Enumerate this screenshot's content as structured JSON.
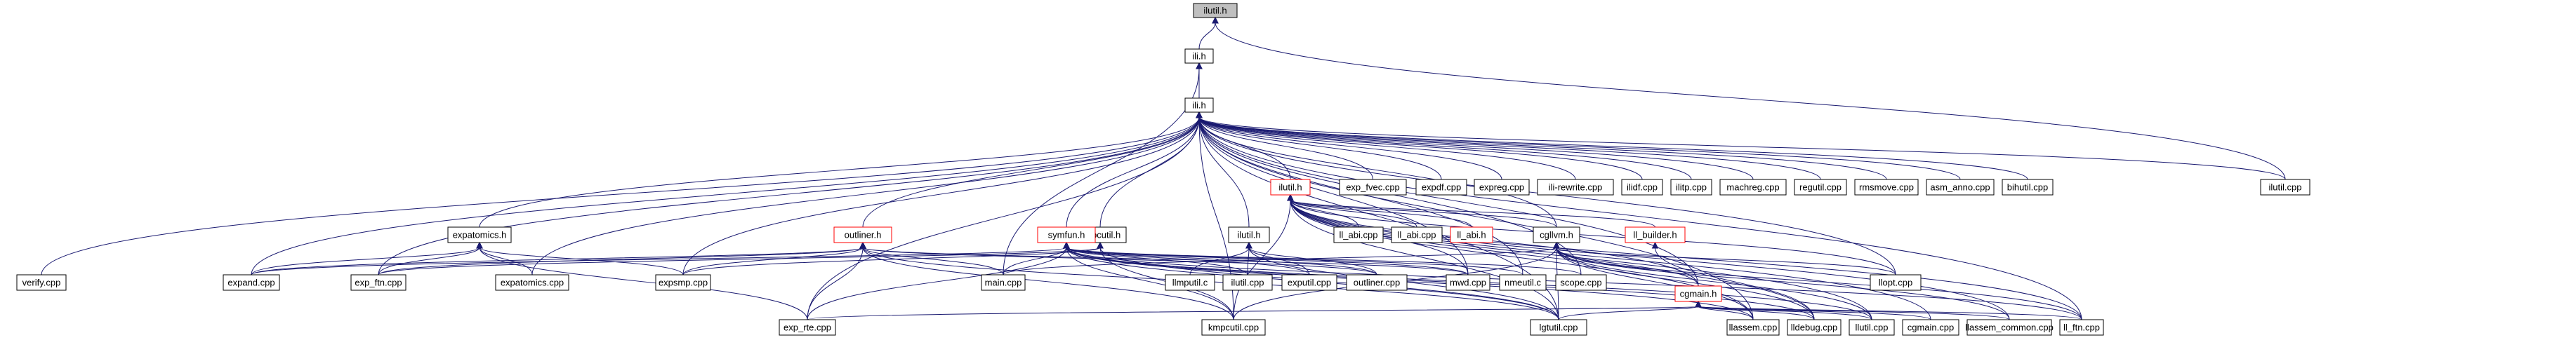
{
  "diagram": {
    "nodes": [
      {
        "id": "ilutil_h_root",
        "label": "ilutil.h",
        "style": "root"
      },
      {
        "id": "ili_h",
        "label": "ili.h"
      },
      {
        "id": "gbldefs_h",
        "label": "ili.h"
      },
      {
        "id": "ilutil_cpp_right",
        "label": "ilutil.cpp"
      },
      {
        "id": "exp_fvec",
        "label": "exp_fvec.cpp"
      },
      {
        "id": "expdf",
        "label": "expdf.cpp"
      },
      {
        "id": "expreg",
        "label": "expreg.cpp"
      },
      {
        "id": "iliwrite",
        "label": "ili-rewrite.cpp"
      },
      {
        "id": "iliutil_cpp",
        "label": "ilidf.cpp"
      },
      {
        "id": "ilitp",
        "label": "ilitp.cpp"
      },
      {
        "id": "machreg",
        "label": "machreg.cpp"
      },
      {
        "id": "regutil",
        "label": "regutil.cpp"
      },
      {
        "id": "rmsmove",
        "label": "rmsmove.cpp"
      },
      {
        "id": "asm_anno",
        "label": "asm_anno.cpp"
      },
      {
        "id": "bihutil",
        "label": "bihutil.cpp"
      },
      {
        "id": "iliutil_h_red",
        "label": "ilutil.h",
        "style": "red"
      },
      {
        "id": "ll_abi_cpp",
        "label": "ll_abi.cpp"
      },
      {
        "id": "ll_abi_cpp2",
        "label": "ll_abi.cpp"
      },
      {
        "id": "ll_abi_h",
        "label": "ll_abi.h",
        "style": "red"
      },
      {
        "id": "cgllvm_h",
        "label": "cgllvm.h"
      },
      {
        "id": "ll_builder_h",
        "label": "ll_builder.h",
        "style": "red"
      },
      {
        "id": "llopt_cpp",
        "label": "llopt.cpp"
      },
      {
        "id": "expatomics_h",
        "label": "expatomics.h"
      },
      {
        "id": "outliner_h",
        "label": "outliner.h",
        "style": "red"
      },
      {
        "id": "kmpcutil_h",
        "label": "kmpcutil.h"
      },
      {
        "id": "ilutil_h_mid",
        "label": "ilutil.h"
      },
      {
        "id": "symfun_h",
        "label": "symfun.h",
        "style": "red"
      },
      {
        "id": "verify",
        "label": "verify.cpp"
      },
      {
        "id": "expand",
        "label": "expand.cpp"
      },
      {
        "id": "exp_ftn",
        "label": "exp_ftn.cpp"
      },
      {
        "id": "expatomics_cpp",
        "label": "expatomics.cpp"
      },
      {
        "id": "expsmp",
        "label": "expsmp.cpp"
      },
      {
        "id": "main_cpp",
        "label": "main.cpp"
      },
      {
        "id": "llmputil",
        "label": "llmputil.c"
      },
      {
        "id": "ilutil_cpp_mid",
        "label": "ilutil.cpp"
      },
      {
        "id": "exputil",
        "label": "exputil.cpp"
      },
      {
        "id": "outliner_cpp",
        "label": "outliner.cpp"
      },
      {
        "id": "mwd",
        "label": "mwd.cpp"
      },
      {
        "id": "nmeutil",
        "label": "nmeutil.c"
      },
      {
        "id": "scope",
        "label": "scope.cpp"
      },
      {
        "id": "cgmain_h",
        "label": "cgmain.h",
        "style": "red"
      },
      {
        "id": "exp_rte",
        "label": "exp_rte.cpp"
      },
      {
        "id": "kmpcutil_cpp",
        "label": "kmpcutil.cpp"
      },
      {
        "id": "lgtutil",
        "label": "lgtutil.cpp"
      },
      {
        "id": "llassem",
        "label": "llassem.cpp"
      },
      {
        "id": "lldebug",
        "label": "lldebug.cpp"
      },
      {
        "id": "llutil",
        "label": "llutil.cpp"
      },
      {
        "id": "cgmain_cpp",
        "label": "cgmain.cpp"
      },
      {
        "id": "llassem_common",
        "label": "llassem_common.cpp"
      },
      {
        "id": "ll_ftn",
        "label": "ll_ftn.cpp"
      }
    ],
    "edges": [
      [
        "ili_h",
        "ilutil_h_root"
      ],
      [
        "ilutil_cpp_right",
        "ilutil_h_root"
      ],
      [
        "gbldefs_h",
        "ili_h"
      ],
      [
        "main_cpp",
        "ili_h"
      ],
      [
        "ilutil_cpp_right",
        "gbldefs_h"
      ],
      [
        "exp_fvec",
        "gbldefs_h"
      ],
      [
        "expdf",
        "gbldefs_h"
      ],
      [
        "expreg",
        "gbldefs_h"
      ],
      [
        "iliwrite",
        "gbldefs_h"
      ],
      [
        "iliutil_cpp",
        "gbldefs_h"
      ],
      [
        "ilitp",
        "gbldefs_h"
      ],
      [
        "machreg",
        "gbldefs_h"
      ],
      [
        "regutil",
        "gbldefs_h"
      ],
      [
        "rmsmove",
        "gbldefs_h"
      ],
      [
        "asm_anno",
        "gbldefs_h"
      ],
      [
        "bihutil",
        "gbldefs_h"
      ],
      [
        "iliutil_h_red",
        "gbldefs_h"
      ],
      [
        "expatomics_h",
        "gbldefs_h"
      ],
      [
        "outliner_h",
        "gbldefs_h"
      ],
      [
        "kmpcutil_h",
        "gbldefs_h"
      ],
      [
        "ilutil_h_mid",
        "gbldefs_h"
      ],
      [
        "symfun_h",
        "gbldefs_h"
      ],
      [
        "verify",
        "gbldefs_h"
      ],
      [
        "expand",
        "gbldefs_h"
      ],
      [
        "exp_ftn",
        "gbldefs_h"
      ],
      [
        "expatomics_cpp",
        "gbldefs_h"
      ],
      [
        "expsmp",
        "gbldefs_h"
      ],
      [
        "exp_rte",
        "gbldefs_h"
      ],
      [
        "cgllvm_h",
        "gbldefs_h"
      ],
      [
        "llopt_cpp",
        "gbldefs_h"
      ],
      [
        "mwd",
        "gbldefs_h"
      ],
      [
        "nmeutil",
        "gbldefs_h"
      ],
      [
        "scope",
        "gbldefs_h"
      ],
      [
        "llassem",
        "gbldefs_h"
      ],
      [
        "kmpcutil_cpp",
        "gbldefs_h"
      ],
      [
        "ll_ftn",
        "gbldefs_h"
      ],
      [
        "cgmain_h",
        "gbldefs_h"
      ],
      [
        "lgtutil",
        "gbldefs_h"
      ],
      [
        "ll_abi_cpp",
        "iliutil_h_red"
      ],
      [
        "ll_abi_cpp2",
        "iliutil_h_red"
      ],
      [
        "ll_abi_h",
        "iliutil_h_red"
      ],
      [
        "cgllvm_h",
        "iliutil_h_red"
      ],
      [
        "ll_builder_h",
        "iliutil_h_red"
      ],
      [
        "llopt_cpp",
        "iliutil_h_red"
      ],
      [
        "cgmain_h",
        "iliutil_h_red"
      ],
      [
        "mwd",
        "iliutil_h_red"
      ],
      [
        "lgtutil",
        "iliutil_h_red"
      ],
      [
        "llassem",
        "iliutil_h_red"
      ],
      [
        "lldebug",
        "iliutil_h_red"
      ],
      [
        "llutil",
        "iliutil_h_red"
      ],
      [
        "ll_ftn",
        "iliutil_h_red"
      ],
      [
        "cgmain_cpp",
        "iliutil_h_red"
      ],
      [
        "llassem_common",
        "iliutil_h_red"
      ],
      [
        "kmpcutil_cpp",
        "iliutil_h_red"
      ],
      [
        "expand",
        "expatomics_h"
      ],
      [
        "exp_ftn",
        "expatomics_h"
      ],
      [
        "expatomics_cpp",
        "expatomics_h"
      ],
      [
        "expsmp",
        "expatomics_h"
      ],
      [
        "exp_rte",
        "expatomics_h"
      ],
      [
        "expand",
        "outliner_h"
      ],
      [
        "exp_ftn",
        "outliner_h"
      ],
      [
        "expsmp",
        "outliner_h"
      ],
      [
        "main_cpp",
        "outliner_h"
      ],
      [
        "outliner_cpp",
        "outliner_h"
      ],
      [
        "exp_rte",
        "outliner_h"
      ],
      [
        "kmpcutil_cpp",
        "outliner_h"
      ],
      [
        "lgtutil",
        "outliner_h"
      ],
      [
        "mwd",
        "outliner_h"
      ],
      [
        "expsmp",
        "kmpcutil_h"
      ],
      [
        "kmpcutil_cpp",
        "kmpcutil_h"
      ],
      [
        "exp_ftn",
        "kmpcutil_h"
      ],
      [
        "lgtutil",
        "kmpcutil_h"
      ],
      [
        "llmputil",
        "ilutil_h_mid"
      ],
      [
        "ilutil_cpp_mid",
        "ilutil_h_mid"
      ],
      [
        "exputil",
        "ilutil_h_mid"
      ],
      [
        "outliner_cpp",
        "ilutil_h_mid"
      ],
      [
        "lgtutil",
        "ilutil_h_mid"
      ],
      [
        "expand",
        "symfun_h"
      ],
      [
        "main_cpp",
        "symfun_h"
      ],
      [
        "ilutil_cpp_mid",
        "symfun_h"
      ],
      [
        "exputil",
        "symfun_h"
      ],
      [
        "outliner_cpp",
        "symfun_h"
      ],
      [
        "mwd",
        "symfun_h"
      ],
      [
        "nmeutil",
        "symfun_h"
      ],
      [
        "scope",
        "symfun_h"
      ],
      [
        "exp_rte",
        "symfun_h"
      ],
      [
        "kmpcutil_cpp",
        "symfun_h"
      ],
      [
        "lgtutil",
        "symfun_h"
      ],
      [
        "llassem",
        "symfun_h"
      ],
      [
        "lldebug",
        "symfun_h"
      ],
      [
        "llutil",
        "symfun_h"
      ],
      [
        "ll_ftn",
        "symfun_h"
      ],
      [
        "main_cpp",
        "cgllvm_h"
      ],
      [
        "llopt_cpp",
        "cgllvm_h"
      ],
      [
        "llassem",
        "cgllvm_h"
      ],
      [
        "lldebug",
        "cgllvm_h"
      ],
      [
        "llutil",
        "cgllvm_h"
      ],
      [
        "cgmain_h",
        "cgllvm_h"
      ],
      [
        "ll_ftn",
        "cgllvm_h"
      ],
      [
        "llassem_common",
        "cgllvm_h"
      ],
      [
        "lgtutil",
        "cgllvm_h"
      ],
      [
        "kmpcutil_cpp",
        "cgllvm_h"
      ],
      [
        "lldebug",
        "ll_builder_h"
      ],
      [
        "llassem",
        "cgmain_h"
      ],
      [
        "lldebug",
        "cgmain_h"
      ],
      [
        "llutil",
        "cgmain_h"
      ],
      [
        "cgmain_cpp",
        "cgmain_h"
      ],
      [
        "llassem_common",
        "cgmain_h"
      ],
      [
        "ll_ftn",
        "cgmain_h"
      ],
      [
        "lgtutil",
        "cgmain_h"
      ],
      [
        "exp_rte",
        "cgmain_h"
      ]
    ]
  }
}
